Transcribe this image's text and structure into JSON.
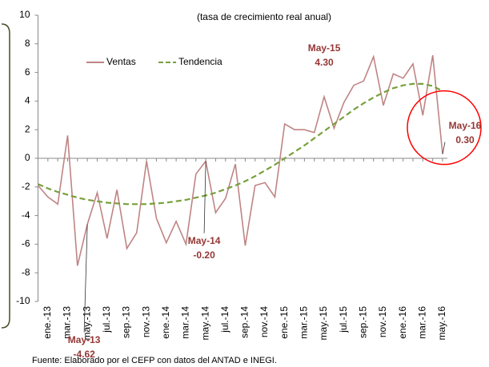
{
  "chart_data": {
    "type": "line",
    "title": "(tasa de crecimiento real anual)",
    "source": "Fuente: Elaborado por el CEFP con datos del ANTAD e INEGI.",
    "categories": [
      null,
      "ene.-13",
      null,
      "mar.-13",
      null,
      "may.-13",
      null,
      "jul.-13",
      null,
      "sep.-13",
      null,
      "nov.-13",
      null,
      "ene.-14",
      null,
      "mar.-14",
      null,
      "may.-14",
      null,
      "jul.-14",
      null,
      "sep.-14",
      null,
      "nov.-14",
      null,
      "ene.-15",
      null,
      "mar.-15",
      null,
      "may.-15",
      null,
      "jul.-15",
      null,
      "sep.-15",
      null,
      "nov.-15",
      null,
      "ene.-16",
      null,
      "mar.-16",
      null,
      "may.-16"
    ],
    "series": [
      {
        "name": "Ventas",
        "color": "#c08484",
        "dashed": false,
        "values": [
          -1.9,
          -2.7,
          -3.2,
          1.6,
          -7.5,
          -4.62,
          -2.4,
          -5.6,
          -2.2,
          -6.3,
          -5.2,
          -0.2,
          -4.2,
          -5.9,
          -4.4,
          -6.0,
          -1.1,
          -0.2,
          -3.8,
          -2.8,
          -0.4,
          -6.1,
          -1.9,
          -1.7,
          -2.7,
          2.4,
          2.0,
          2.0,
          1.8,
          4.3,
          2.1,
          3.9,
          5.1,
          5.4,
          7.1,
          3.7,
          5.9,
          5.6,
          6.6,
          3.0,
          7.2,
          0.3
        ],
        "value_labels": [
          null,
          null,
          null,
          null,
          null,
          "-4.62",
          null,
          null,
          null,
          null,
          null,
          null,
          null,
          null,
          null,
          null,
          null,
          "-0.20",
          null,
          null,
          null,
          null,
          null,
          null,
          null,
          null,
          null,
          null,
          null,
          "4.30",
          null,
          null,
          null,
          null,
          null,
          null,
          null,
          null,
          null,
          null,
          null,
          "0.30"
        ],
        "point_names": [
          null,
          null,
          null,
          null,
          null,
          "May-13",
          null,
          null,
          null,
          null,
          null,
          null,
          null,
          null,
          null,
          null,
          null,
          "May-14",
          null,
          null,
          null,
          null,
          null,
          null,
          null,
          null,
          null,
          null,
          null,
          "May-15",
          null,
          null,
          null,
          null,
          null,
          null,
          null,
          null,
          null,
          null,
          null,
          "May-16"
        ]
      },
      {
        "name": "Tendencia",
        "color": "#77a03c",
        "dashed": true,
        "values": [
          -1.8,
          -2.1,
          -2.35,
          -2.55,
          -2.75,
          -2.9,
          -3.0,
          -3.1,
          -3.15,
          -3.2,
          -3.2,
          -3.2,
          -3.15,
          -3.1,
          -3.0,
          -2.9,
          -2.75,
          -2.6,
          -2.4,
          -2.15,
          -1.9,
          -1.6,
          -1.25,
          -0.85,
          -0.45,
          0,
          0.45,
          0.9,
          1.4,
          1.9,
          2.4,
          2.9,
          3.4,
          3.85,
          4.25,
          4.6,
          4.9,
          5.1,
          5.2,
          5.2,
          5.05,
          4.7
        ]
      }
    ],
    "ylim": [
      -10,
      10
    ],
    "yticks": [
      -10,
      -8,
      -6,
      -4,
      -2,
      0,
      2,
      4,
      6,
      8,
      10
    ],
    "grid": false,
    "legend": "top-left",
    "highlight_color": "#ff0000"
  }
}
